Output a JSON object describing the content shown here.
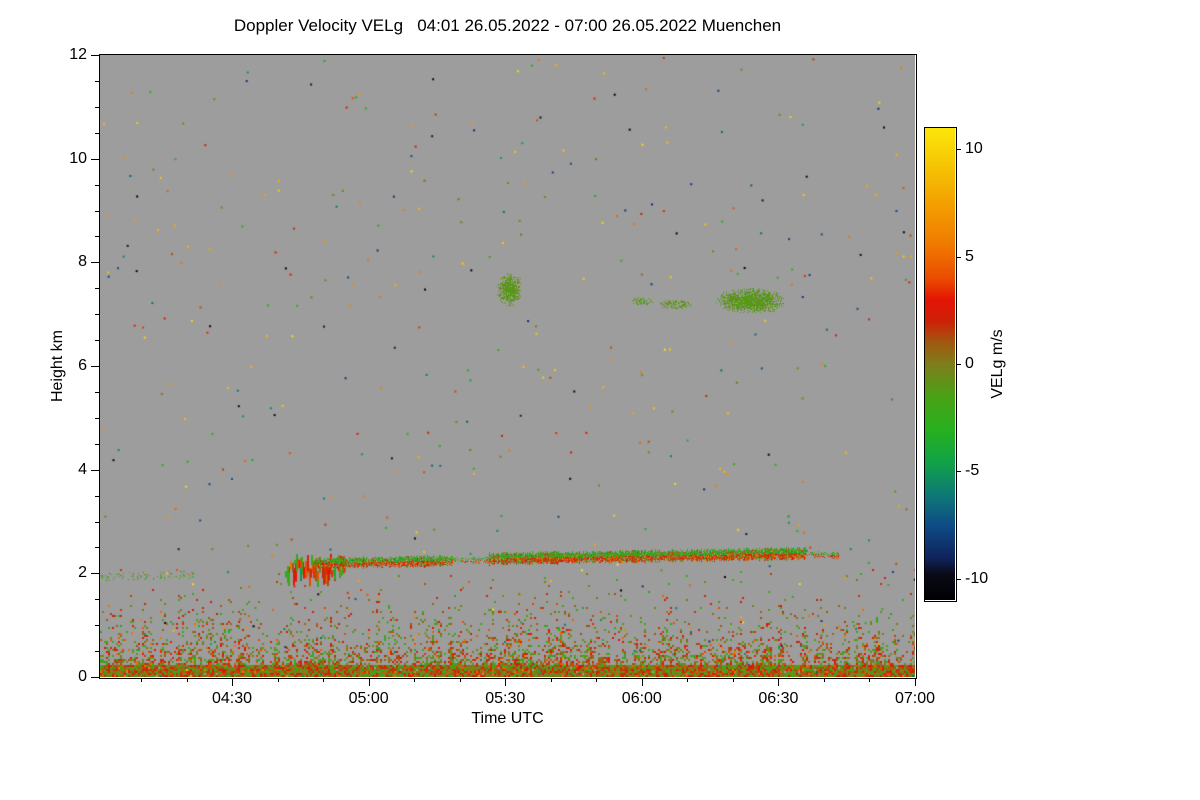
{
  "figure": {
    "background_color": "#ffffff"
  },
  "chart_data": {
    "type": "heatmap",
    "title": "Doppler Velocity VELg   04:01 26.05.2022 - 07:00 26.05.2022 Muenchen",
    "instrument_product": "Doppler Velocity VELg",
    "time_start": "04:01 26.05.2022",
    "time_end": "07:00 26.05.2022",
    "site": "Muenchen",
    "plot_background": "#9d9d9d",
    "x_axis": {
      "label": "Time UTC",
      "range_hours": [
        4.0167,
        7.0
      ],
      "ticks": [
        {
          "v": 4.5,
          "label": "04:30"
        },
        {
          "v": 5.0,
          "label": "05:00"
        },
        {
          "v": 5.5,
          "label": "05:30"
        },
        {
          "v": 6.0,
          "label": "06:00"
        },
        {
          "v": 6.5,
          "label": "06:30"
        },
        {
          "v": 7.0,
          "label": "07:00"
        }
      ],
      "minor_step_hours": 0.1666667
    },
    "y_axis": {
      "label": "Height km",
      "range_km": [
        0,
        12
      ],
      "ticks": [
        {
          "v": 0,
          "label": "0"
        },
        {
          "v": 2,
          "label": "2"
        },
        {
          "v": 4,
          "label": "4"
        },
        {
          "v": 6,
          "label": "6"
        },
        {
          "v": 8,
          "label": "8"
        },
        {
          "v": 10,
          "label": "10"
        },
        {
          "v": 12,
          "label": "12"
        }
      ],
      "minor_step_km": 0.5
    },
    "colorbar": {
      "label": "VELg m/s",
      "range": [
        -11,
        11
      ],
      "ticks": [
        {
          "v": 10,
          "label": "10"
        },
        {
          "v": 5,
          "label": "5"
        },
        {
          "v": 0,
          "label": "0"
        },
        {
          "v": -5,
          "label": "-5"
        },
        {
          "v": -10,
          "label": "-10"
        }
      ],
      "stops": [
        [
          -11.0,
          "#000004"
        ],
        [
          -9.8,
          "#0a0a16"
        ],
        [
          -9.0,
          "#10245e"
        ],
        [
          -7.5,
          "#0e4c86"
        ],
        [
          -6.0,
          "#0e7c74"
        ],
        [
          -4.5,
          "#12a446"
        ],
        [
          -3.0,
          "#28b01e"
        ],
        [
          -1.5,
          "#4aa216"
        ],
        [
          0.0,
          "#7e7e1c"
        ],
        [
          1.0,
          "#a05a10"
        ],
        [
          2.0,
          "#cc2208"
        ],
        [
          3.0,
          "#e41404"
        ],
        [
          4.0,
          "#ea4c00"
        ],
        [
          5.5,
          "#f07800"
        ],
        [
          7.5,
          "#f2a000"
        ],
        [
          9.5,
          "#f6ca04"
        ],
        [
          11.0,
          "#fce60a"
        ]
      ]
    },
    "render": {
      "seed": 20220526,
      "sparse_noise": {
        "count": 430
      },
      "surface_band": {
        "h_max_km": 0.22,
        "density": 0.97,
        "value_mean": 0.4,
        "value_spread": 1.6
      },
      "surface_layer": {
        "h_max_km": 2.05,
        "base_density": 0.8,
        "decay_km": 0.42,
        "value_mean": 0.6,
        "value_spread": 2.1
      },
      "elevated_layer": {
        "top_value_mean": -2.1,
        "top_value_spread": 1.2,
        "bottom_value_mean": 2.5,
        "bottom_value_spread": 1.8,
        "segments": [
          {
            "hash": true,
            "t0": 4.69,
            "t1": 4.91,
            "count": 60,
            "h_top_min": 2.02,
            "h_top_max": 2.38,
            "max_len_km": 0.3
          },
          {
            "t0": 4.8,
            "t1": 5.31,
            "hc0": 2.19,
            "hc1": 2.24,
            "half_km": 0.085,
            "density": 0.85
          },
          {
            "t0": 5.31,
            "t1": 5.44,
            "hc0": 2.24,
            "hc1": 2.26,
            "half_km": 0.05,
            "density": 0.4
          },
          {
            "t0": 5.44,
            "t1": 6.6,
            "hc0": 2.28,
            "hc1": 2.38,
            "half_km": 0.095,
            "density": 0.92
          },
          {
            "t0": 6.6,
            "t1": 6.72,
            "hc0": 2.37,
            "hc1": 2.34,
            "half_km": 0.05,
            "density": 0.5
          },
          {
            "t0": 4.02,
            "t1": 4.36,
            "hc0": 1.93,
            "hc1": 1.97,
            "half_km": 0.06,
            "density": 0.2,
            "mono_mean": -1.5,
            "mono_spread": 1.2
          }
        ]
      },
      "clouds": [
        {
          "t0": 5.47,
          "t1": 5.56,
          "h0": 7.15,
          "h1": 7.8,
          "density": 0.85,
          "value_mean": -1.0,
          "value_spread": 0.5
        },
        {
          "t0": 5.96,
          "t1": 6.04,
          "h0": 7.18,
          "h1": 7.36,
          "density": 0.45,
          "value_mean": -1.0,
          "value_spread": 0.5
        },
        {
          "t0": 6.06,
          "t1": 6.18,
          "h0": 7.1,
          "h1": 7.3,
          "density": 0.5,
          "value_mean": -0.9,
          "value_spread": 0.5
        },
        {
          "t0": 6.27,
          "t1": 6.52,
          "h0": 7.02,
          "h1": 7.5,
          "density": 0.9,
          "value_mean": -1.1,
          "value_spread": 0.5
        }
      ]
    }
  }
}
